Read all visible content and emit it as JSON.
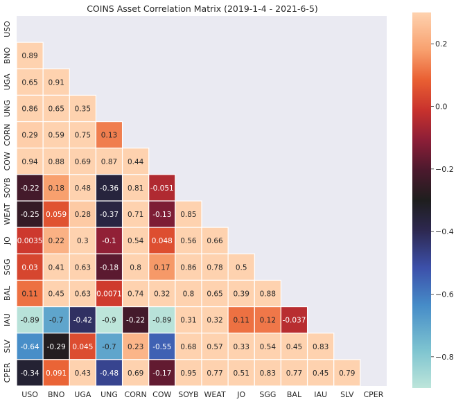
{
  "chart_data": {
    "type": "heatmap",
    "title": "COINS Asset Correlation Matrix (2019-1-4 - 2021-6-5)",
    "labels": [
      "USO",
      "BNO",
      "UGA",
      "UNG",
      "CORN",
      "COW",
      "SOYB",
      "WEAT",
      "JO",
      "SGG",
      "BAL",
      "IAU",
      "SLV",
      "CPER"
    ],
    "lower_triangle_values": [
      [],
      [
        "0.89"
      ],
      [
        "0.65",
        "0.91"
      ],
      [
        "0.86",
        "0.65",
        "0.35"
      ],
      [
        "0.29",
        "0.59",
        "0.75",
        "0.13"
      ],
      [
        "0.94",
        "0.88",
        "0.69",
        "0.87",
        "0.44"
      ],
      [
        "-0.22",
        "0.18",
        "0.48",
        "-0.36",
        "0.81",
        "-0.051"
      ],
      [
        "-0.25",
        "0.059",
        "0.28",
        "-0.37",
        "0.71",
        "-0.13",
        "0.85"
      ],
      [
        "0.0035",
        "0.22",
        "0.3",
        "-0.1",
        "0.54",
        "0.048",
        "0.56",
        "0.66"
      ],
      [
        "0.03",
        "0.41",
        "0.63",
        "-0.18",
        "0.8",
        "0.17",
        "0.86",
        "0.78",
        "0.5"
      ],
      [
        "0.11",
        "0.45",
        "0.63",
        "0.0071",
        "0.74",
        "0.32",
        "0.8",
        "0.65",
        "0.39",
        "0.88"
      ],
      [
        "-0.89",
        "-0.7",
        "-0.42",
        "-0.9",
        "-0.22",
        "-0.89",
        "0.31",
        "0.32",
        "0.11",
        "0.12",
        "-0.037"
      ],
      [
        "-0.64",
        "-0.29",
        "0.045",
        "-0.7",
        "0.23",
        "-0.55",
        "0.68",
        "0.57",
        "0.33",
        "0.54",
        "0.45",
        "0.83"
      ],
      [
        "-0.34",
        "0.091",
        "0.43",
        "-0.48",
        "0.69",
        "-0.17",
        "0.95",
        "0.77",
        "0.51",
        "0.83",
        "0.77",
        "0.45",
        "0.79"
      ]
    ],
    "vmin": -0.9,
    "vmax": 0.3,
    "colormap": "icefire",
    "colorbar_ticks": [
      "0.2",
      "0.0",
      "-0.2",
      "-0.4",
      "-0.6",
      "-0.8"
    ],
    "mask": "upper triangle including diagonal",
    "grid": true
  },
  "colors": {
    "mask_background": "#eaeaf2",
    "cell_border": "#ffffff",
    "text_dark": "#262626",
    "text_light": "#ffffff"
  }
}
